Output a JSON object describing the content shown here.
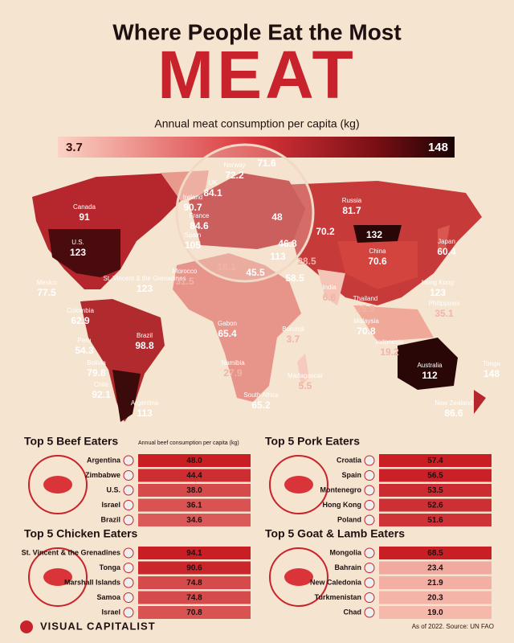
{
  "header": {
    "title": "Where People Eat the Most",
    "headline": "MEAT",
    "subtitle": "Annual meat consumption per capita (kg)"
  },
  "scale": {
    "min": 3.7,
    "max": 148
  },
  "map_labels": [
    {
      "name": "Canada",
      "value": 91
    },
    {
      "name": "U.S.",
      "value": 123
    },
    {
      "name": "Mexico",
      "value": 77.5
    },
    {
      "name": "St. Vincent & the Grenadines",
      "value": 123
    },
    {
      "name": "Colombia",
      "value": 62.9
    },
    {
      "name": "Peru",
      "value": 54.3
    },
    {
      "name": "Bolivia",
      "value": 79.8
    },
    {
      "name": "Chile",
      "value": 92.1
    },
    {
      "name": "Argentina",
      "value": 113
    },
    {
      "name": "Brazil",
      "value": 98.8
    },
    {
      "name": "Morocco",
      "value": 31.5
    },
    {
      "name": "Gabon",
      "value": 65.4
    },
    {
      "name": "Namibia",
      "value": 27.9
    },
    {
      "name": "South Africa",
      "value": 65.2
    },
    {
      "name": "Burundi",
      "value": 3.7
    },
    {
      "name": "Madagascar",
      "value": 5.5
    },
    {
      "name": "Norway",
      "value": 72.2
    },
    {
      "value": 71.6
    },
    {
      "name": "UK",
      "value": 84.1
    },
    {
      "name": "Ireland",
      "value": 90.7
    },
    {
      "name": "France",
      "value": 84.6
    },
    {
      "name": "Spain",
      "value": 105
    },
    {
      "value": 48
    },
    {
      "value": 46.8
    },
    {
      "value": 113
    },
    {
      "value": 18.1
    },
    {
      "value": 45.5
    },
    {
      "value": 28.5
    },
    {
      "value": 58.5
    },
    {
      "value": 70.2
    },
    {
      "name": "Russia",
      "value": 81.7
    },
    {
      "value": 132
    },
    {
      "name": "China",
      "value": 70.6
    },
    {
      "name": "Japan",
      "value": 60.4
    },
    {
      "name": "India",
      "value": 6.6
    },
    {
      "name": "Thailand",
      "value": 25.9
    },
    {
      "name": "Malaysia",
      "value": 70.8
    },
    {
      "name": "Indonesia",
      "value": 19.2
    },
    {
      "name": "Hong Kong",
      "value": 123
    },
    {
      "name": "Philippines",
      "value": 35.1
    },
    {
      "name": "Australia",
      "value": 112
    },
    {
      "name": "Tonga",
      "value": 148
    },
    {
      "name": "New Zealand",
      "value": 86.6
    }
  ],
  "panels": [
    {
      "title": "Top 5 Beef Eaters",
      "note": "Annual beef consumption per capita (kg)",
      "rows": [
        {
          "country": "Argentina",
          "value": "48.0"
        },
        {
          "country": "Zimbabwe",
          "value": "44.4"
        },
        {
          "country": "U.S.",
          "value": "38.0"
        },
        {
          "country": "Israel",
          "value": "36.1"
        },
        {
          "country": "Brazil",
          "value": "34.6"
        }
      ]
    },
    {
      "title": "Top 5 Pork Eaters",
      "rows": [
        {
          "country": "Croatia",
          "value": "57.4"
        },
        {
          "country": "Spain",
          "value": "56.5"
        },
        {
          "country": "Montenegro",
          "value": "53.5"
        },
        {
          "country": "Hong Kong",
          "value": "52.6"
        },
        {
          "country": "Poland",
          "value": "51.6"
        }
      ]
    },
    {
      "title": "Top 5 Chicken Eaters",
      "rows": [
        {
          "country": "St. Vincent & the Grenadines",
          "value": "94.1"
        },
        {
          "country": "Tonga",
          "value": "90.6"
        },
        {
          "country": "Marshall Islands",
          "value": "74.8"
        },
        {
          "country": "Samoa",
          "value": "74.8"
        },
        {
          "country": "Israel",
          "value": "70.8"
        }
      ]
    },
    {
      "title": "Top 5 Goat & Lamb Eaters",
      "rows": [
        {
          "country": "Mongolia",
          "value": "68.5"
        },
        {
          "country": "Bahrain",
          "value": "23.4"
        },
        {
          "country": "New Caledonia",
          "value": "21.9"
        },
        {
          "country": "Turkmenistan",
          "value": "20.3"
        },
        {
          "country": "Chad",
          "value": "19.0"
        }
      ]
    }
  ],
  "footer": {
    "brand": "VISUAL CAPITALIST",
    "source": "As of 2022. Source: UN FAO"
  }
}
